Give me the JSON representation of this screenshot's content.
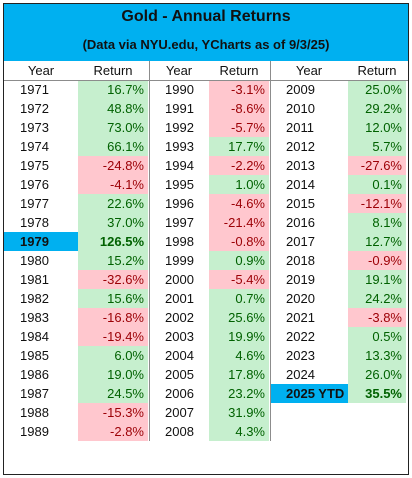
{
  "title": "Gold - Annual Returns",
  "subtitle": "(Data via NYU.edu, YCharts as of 9/3/25)",
  "header_year": "Year",
  "header_return": "Return",
  "colors": {
    "header_bg": "#00b0f0",
    "positive_bg": "#c6efce",
    "negative_bg": "#ffc7ce",
    "highlight": "#00b0f0"
  },
  "chart_data": {
    "type": "table",
    "columns": [
      "Year",
      "Return"
    ],
    "highlighted_years": [
      "1979",
      "2025 YTD"
    ],
    "groups": [
      [
        {
          "year": "1971",
          "return": "16.7%"
        },
        {
          "year": "1972",
          "return": "48.8%"
        },
        {
          "year": "1973",
          "return": "73.0%"
        },
        {
          "year": "1974",
          "return": "66.1%"
        },
        {
          "year": "1975",
          "return": "-24.8%"
        },
        {
          "year": "1976",
          "return": "-4.1%"
        },
        {
          "year": "1977",
          "return": "22.6%"
        },
        {
          "year": "1978",
          "return": "37.0%"
        },
        {
          "year": "1979",
          "return": "126.5%"
        },
        {
          "year": "1980",
          "return": "15.2%"
        },
        {
          "year": "1981",
          "return": "-32.6%"
        },
        {
          "year": "1982",
          "return": "15.6%"
        },
        {
          "year": "1983",
          "return": "-16.8%"
        },
        {
          "year": "1984",
          "return": "-19.4%"
        },
        {
          "year": "1985",
          "return": "6.0%"
        },
        {
          "year": "1986",
          "return": "19.0%"
        },
        {
          "year": "1987",
          "return": "24.5%"
        },
        {
          "year": "1988",
          "return": "-15.3%"
        },
        {
          "year": "1989",
          "return": "-2.8%"
        }
      ],
      [
        {
          "year": "1990",
          "return": "-3.1%"
        },
        {
          "year": "1991",
          "return": "-8.6%"
        },
        {
          "year": "1992",
          "return": "-5.7%"
        },
        {
          "year": "1993",
          "return": "17.7%"
        },
        {
          "year": "1994",
          "return": "-2.2%"
        },
        {
          "year": "1995",
          "return": "1.0%"
        },
        {
          "year": "1996",
          "return": "-4.6%"
        },
        {
          "year": "1997",
          "return": "-21.4%"
        },
        {
          "year": "1998",
          "return": "-0.8%"
        },
        {
          "year": "1999",
          "return": "0.9%"
        },
        {
          "year": "2000",
          "return": "-5.4%"
        },
        {
          "year": "2001",
          "return": "0.7%"
        },
        {
          "year": "2002",
          "return": "25.6%"
        },
        {
          "year": "2003",
          "return": "19.9%"
        },
        {
          "year": "2004",
          "return": "4.6%"
        },
        {
          "year": "2005",
          "return": "17.8%"
        },
        {
          "year": "2006",
          "return": "23.2%"
        },
        {
          "year": "2007",
          "return": "31.9%"
        },
        {
          "year": "2008",
          "return": "4.3%"
        }
      ],
      [
        {
          "year": "2009",
          "return": "25.0%"
        },
        {
          "year": "2010",
          "return": "29.2%"
        },
        {
          "year": "2011",
          "return": "12.0%"
        },
        {
          "year": "2012",
          "return": "5.7%"
        },
        {
          "year": "2013",
          "return": "-27.6%"
        },
        {
          "year": "2014",
          "return": "0.1%"
        },
        {
          "year": "2015",
          "return": "-12.1%"
        },
        {
          "year": "2016",
          "return": "8.1%"
        },
        {
          "year": "2017",
          "return": "12.7%"
        },
        {
          "year": "2018",
          "return": "-0.9%"
        },
        {
          "year": "2019",
          "return": "19.1%"
        },
        {
          "year": "2020",
          "return": "24.2%"
        },
        {
          "year": "2021",
          "return": "-3.8%"
        },
        {
          "year": "2022",
          "return": "0.5%"
        },
        {
          "year": "2023",
          "return": "13.3%"
        },
        {
          "year": "2024",
          "return": "26.0%"
        },
        {
          "year": "2025 YTD",
          "return": "35.5%"
        }
      ]
    ]
  }
}
